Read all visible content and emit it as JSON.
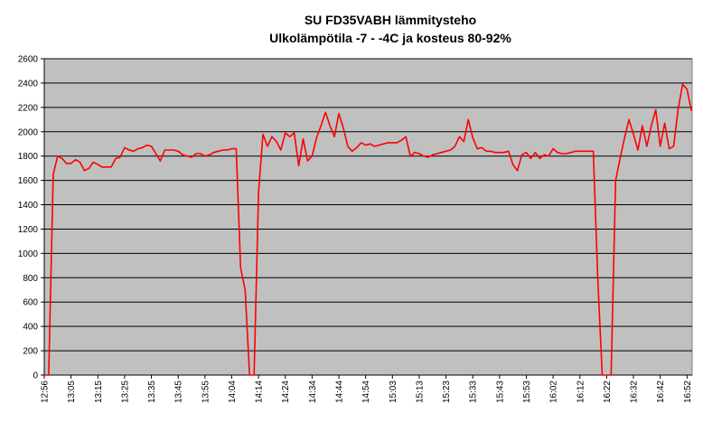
{
  "chart_data": {
    "type": "line",
    "title": "SU FD35VABH lämmitysteho",
    "subtitle": "Ulkolämpötila  -7 - -4C ja kosteus 80-92%",
    "categories": [
      "12:56",
      null,
      null,
      null,
      null,
      null,
      "13:05",
      null,
      null,
      null,
      null,
      null,
      "13:15",
      null,
      null,
      null,
      null,
      null,
      "13:25",
      null,
      null,
      null,
      null,
      null,
      "13:35",
      null,
      null,
      null,
      null,
      null,
      "13:45",
      null,
      null,
      null,
      null,
      null,
      "13:55",
      null,
      null,
      null,
      null,
      null,
      "14:04",
      null,
      null,
      null,
      null,
      null,
      "14:14",
      null,
      null,
      null,
      null,
      null,
      "14:24",
      null,
      null,
      null,
      null,
      null,
      "14:34",
      null,
      null,
      null,
      null,
      null,
      "14:44",
      null,
      null,
      null,
      null,
      null,
      "14:54",
      null,
      null,
      null,
      null,
      null,
      "15:03",
      null,
      null,
      null,
      null,
      null,
      "15:13",
      null,
      null,
      null,
      null,
      null,
      "15:23",
      null,
      null,
      null,
      null,
      null,
      "15:33",
      null,
      null,
      null,
      null,
      null,
      "15:43",
      null,
      null,
      null,
      null,
      null,
      "15:53",
      null,
      null,
      null,
      null,
      null,
      "16:02",
      null,
      null,
      null,
      null,
      null,
      "16:12",
      null,
      null,
      null,
      null,
      null,
      "16:22",
      null,
      null,
      null,
      null,
      null,
      "16:32",
      null,
      null,
      null,
      null,
      null,
      "16:42",
      null,
      null,
      null,
      null,
      null,
      "16:52",
      null
    ],
    "values": [
      0,
      0,
      1650,
      1800,
      1780,
      1740,
      1740,
      1770,
      1750,
      1680,
      1700,
      1750,
      1730,
      1710,
      1710,
      1710,
      1780,
      1790,
      1870,
      1850,
      1840,
      1860,
      1870,
      1890,
      1880,
      1820,
      1760,
      1850,
      1850,
      1850,
      1840,
      1810,
      1800,
      1790,
      1820,
      1820,
      1800,
      1810,
      1830,
      1840,
      1850,
      1850,
      1860,
      1860,
      880,
      700,
      0,
      0,
      1500,
      1980,
      1880,
      1960,
      1920,
      1850,
      1990,
      1960,
      1990,
      1720,
      1940,
      1760,
      1800,
      1950,
      2050,
      2160,
      2050,
      1960,
      2150,
      2030,
      1880,
      1840,
      1870,
      1910,
      1890,
      1900,
      1880,
      1890,
      1900,
      1910,
      1910,
      1910,
      1930,
      1960,
      1800,
      1830,
      1820,
      1800,
      1790,
      1810,
      1820,
      1830,
      1840,
      1850,
      1880,
      1960,
      1920,
      2100,
      1950,
      1860,
      1870,
      1840,
      1840,
      1830,
      1830,
      1830,
      1840,
      1730,
      1680,
      1810,
      1830,
      1780,
      1830,
      1780,
      1810,
      1800,
      1860,
      1830,
      1820,
      1820,
      1830,
      1840,
      1840,
      1840,
      1840,
      1840,
      800,
      0,
      0,
      0,
      1600,
      1780,
      1950,
      2100,
      1980,
      1850,
      2050,
      1880,
      2050,
      2180,
      1880,
      2070,
      1860,
      1880,
      2180,
      2390,
      2350,
      2170
    ],
    "color": "#ff0000",
    "ylim": [
      0,
      2600
    ],
    "yticks": [
      0,
      200,
      400,
      600,
      800,
      1000,
      1200,
      1400,
      1600,
      1800,
      2000,
      2200,
      2400,
      2600
    ],
    "grid": true
  }
}
